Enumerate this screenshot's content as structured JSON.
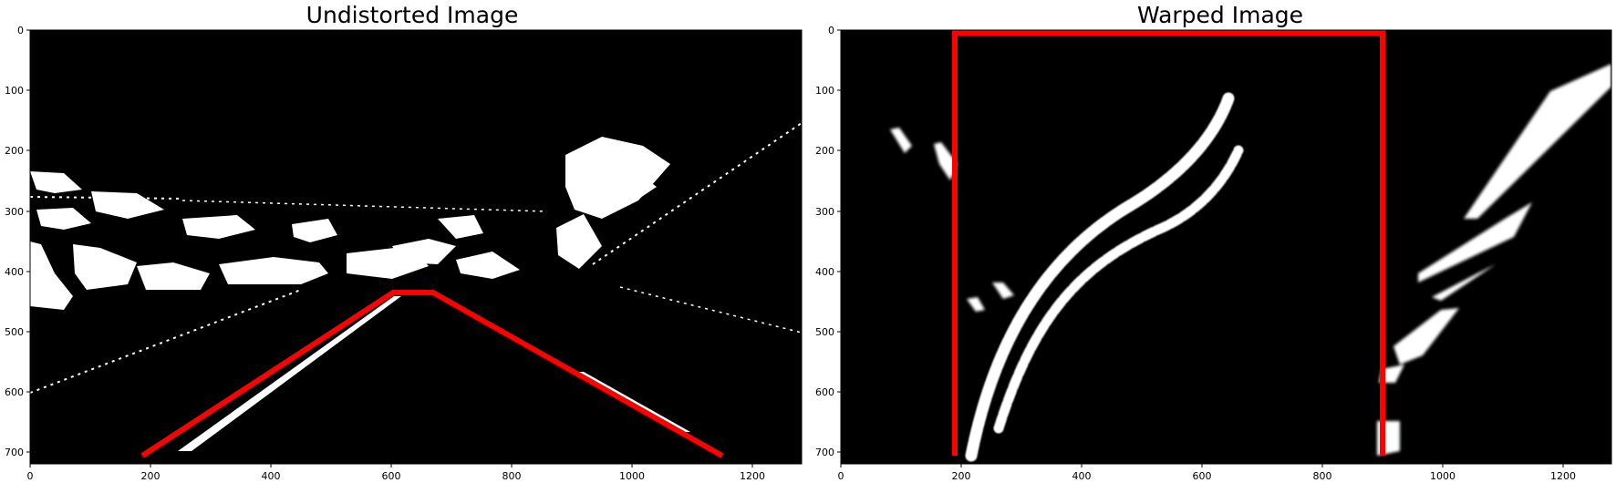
{
  "panels": [
    {
      "title": "Undistorted Image",
      "xticks": [
        "0",
        "200",
        "400",
        "600",
        "800",
        "1000",
        "1200"
      ],
      "yticks": [
        "0",
        "100",
        "200",
        "300",
        "400",
        "500",
        "600",
        "700"
      ],
      "source_polygon": [
        [
          190,
          720
        ],
        [
          605,
          445
        ],
        [
          670,
          445
        ],
        [
          1150,
          720
        ]
      ]
    },
    {
      "title": "Warped Image",
      "xticks": [
        "0",
        "200",
        "400",
        "600",
        "800",
        "1000",
        "1200"
      ],
      "yticks": [
        "0",
        "100",
        "200",
        "300",
        "400",
        "500",
        "600",
        "700"
      ],
      "dest_rectangle": [
        [
          190,
          720
        ],
        [
          190,
          0
        ],
        [
          900,
          0
        ],
        [
          900,
          720
        ]
      ]
    }
  ],
  "image_extent": {
    "width": 1280,
    "height": 720
  },
  "colors": {
    "overlay": "#ff0000",
    "background": "#000000",
    "lane": "#ffffff"
  }
}
